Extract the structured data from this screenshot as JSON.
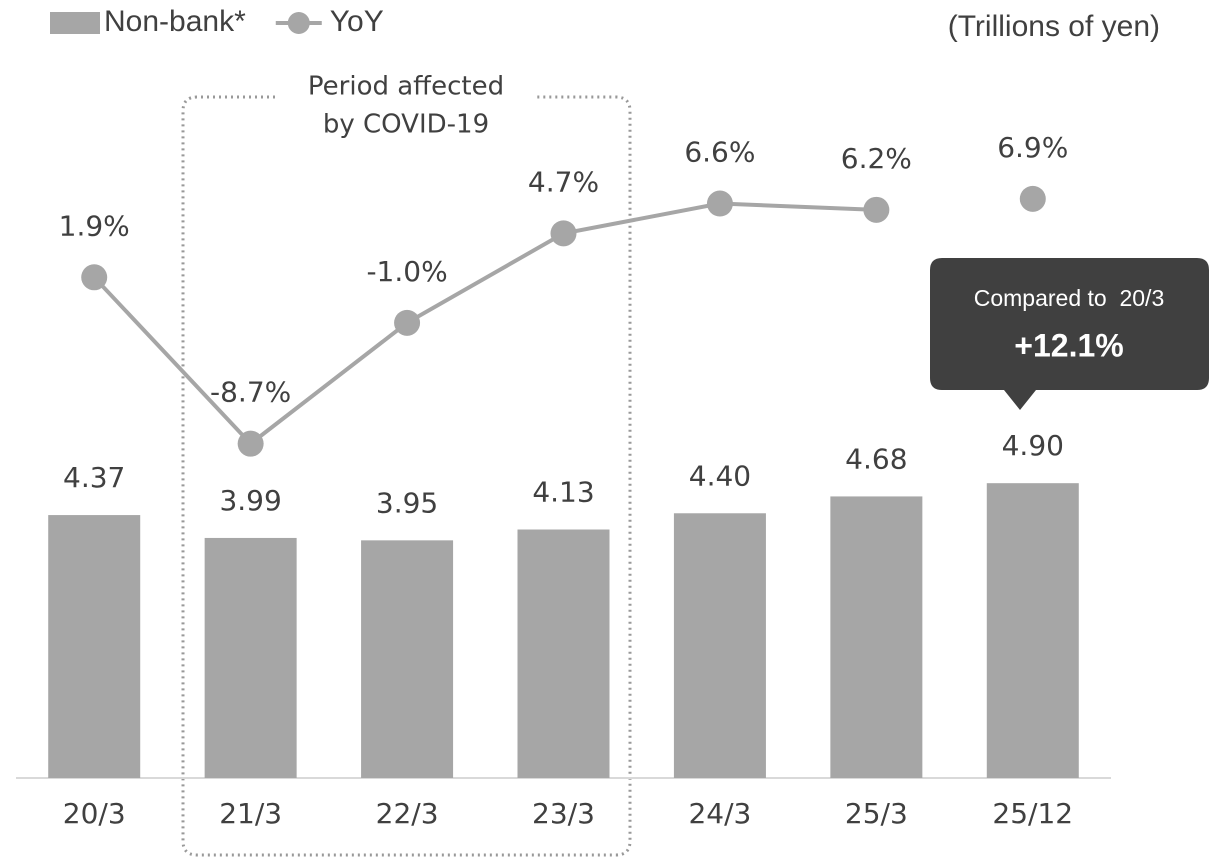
{
  "chart_data": {
    "type": "bar_line",
    "unit_label": "(Trillions of yen)",
    "categories": [
      "20/3",
      "21/3",
      "22/3",
      "23/3",
      "24/3",
      "25/3",
      "25/12"
    ],
    "series": [
      {
        "name": "Non-bank*",
        "type": "bar",
        "color": "#a6a6a6",
        "values": [
          4.37,
          3.99,
          3.95,
          4.13,
          4.4,
          4.68,
          4.9
        ],
        "value_labels": [
          "4.37",
          "3.99",
          "3.95",
          "4.13",
          "4.40",
          "4.68",
          "4.90"
        ]
      },
      {
        "name": "YoY",
        "type": "line",
        "axis": "y2",
        "color": "#a6a6a6",
        "values": [
          1.9,
          -8.7,
          -1.0,
          4.7,
          6.6,
          6.2,
          6.9
        ],
        "value_labels": [
          "1.9%",
          "-8.7%",
          "-1.0%",
          "4.7%",
          "6.6%",
          "6.2%",
          "6.9%"
        ],
        "line_ends_at": "25/3"
      }
    ],
    "ylim": [
      0,
      12
    ],
    "y2lim": [
      -30,
      16
    ],
    "covid_note": [
      "Period affected",
      "by COVID-19"
    ],
    "callout": {
      "label": "Compared to  20/3",
      "value": "+12.1%"
    }
  }
}
